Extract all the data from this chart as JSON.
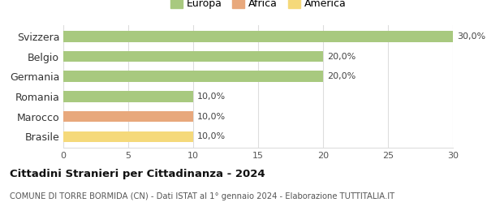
{
  "categories": [
    "Svizzera",
    "Belgio",
    "Germania",
    "Romania",
    "Marocco",
    "Brasile"
  ],
  "values": [
    30.0,
    20.0,
    20.0,
    10.0,
    10.0,
    10.0
  ],
  "bar_colors": [
    "#a8c97f",
    "#a8c97f",
    "#a8c97f",
    "#a8c97f",
    "#e8a87c",
    "#f5d97a"
  ],
  "legend_items": [
    {
      "label": "Europa",
      "color": "#a8c97f"
    },
    {
      "label": "Africa",
      "color": "#e8a87c"
    },
    {
      "label": "America",
      "color": "#f5d97a"
    }
  ],
  "xlim": [
    0,
    30
  ],
  "xticks": [
    0,
    5,
    10,
    15,
    20,
    25,
    30
  ],
  "title": "Cittadini Stranieri per Cittadinanza - 2024",
  "subtitle": "COMUNE DI TORRE BORMIDA (CN) - Dati ISTAT al 1° gennaio 2024 - Elaborazione TUTTITALIA.IT",
  "value_labels": [
    "30,0%",
    "20,0%",
    "20,0%",
    "10,0%",
    "10,0%",
    "10,0%"
  ],
  "background_color": "#ffffff",
  "grid_color": "#dddddd",
  "bar_height": 0.55
}
